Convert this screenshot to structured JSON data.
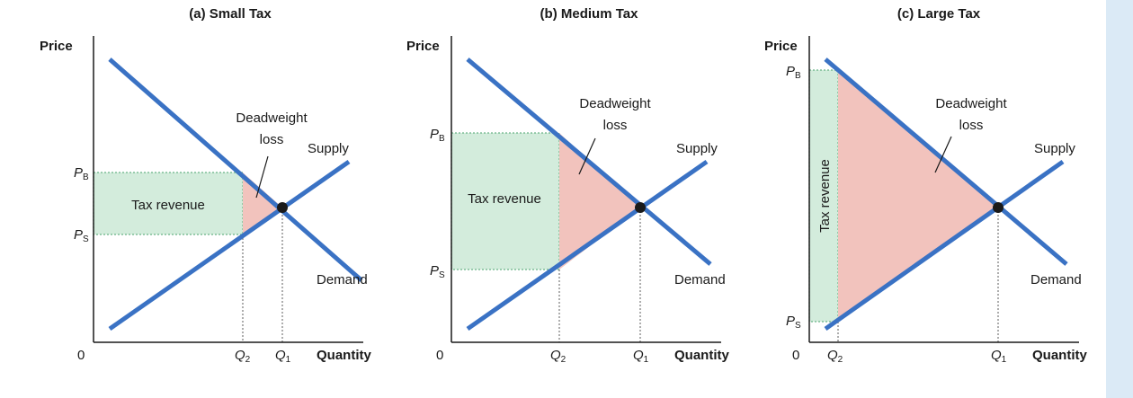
{
  "colors": {
    "curve": "#3a72c4",
    "tax_revenue_fill": "#d3ecdc",
    "tax_revenue_border": "#69b386",
    "deadweight_fill": "#f2c3bd",
    "guide": "#777777",
    "axis": "#1a1a1a",
    "side_strip": "#dbeaf6"
  },
  "panels": [
    {
      "title": "(a) Small Tax",
      "y_axis_label": "Price",
      "x_axis_label": "Quantity",
      "origin_label": "0",
      "pb_label": "P",
      "pb_sub": "B",
      "ps_label": "P",
      "ps_sub": "S",
      "q2_label": "Q",
      "q2_sub": "2",
      "q1_label": "Q",
      "q1_sub": "1",
      "supply_label": "Supply",
      "demand_label": "Demand",
      "dwl_label_line1": "Deadweight",
      "dwl_label_line2": "loss",
      "tax_revenue_label": "Tax revenue"
    },
    {
      "title": "(b) Medium Tax",
      "y_axis_label": "Price",
      "x_axis_label": "Quantity",
      "origin_label": "0",
      "pb_label": "P",
      "pb_sub": "B",
      "ps_label": "P",
      "ps_sub": "S",
      "q2_label": "Q",
      "q2_sub": "2",
      "q1_label": "Q",
      "q1_sub": "1",
      "supply_label": "Supply",
      "demand_label": "Demand",
      "dwl_label_line1": "Deadweight",
      "dwl_label_line2": "loss",
      "tax_revenue_label": "Tax revenue"
    },
    {
      "title": "(c) Large Tax",
      "y_axis_label": "Price",
      "x_axis_label": "Quantity",
      "origin_label": "0",
      "pb_label": "P",
      "pb_sub": "B",
      "ps_label": "P",
      "ps_sub": "S",
      "q2_label": "Q",
      "q2_sub": "2",
      "q1_label": "Q",
      "q1_sub": "1",
      "supply_label": "Supply",
      "demand_label": "Demand",
      "dwl_label_line1": "Deadweight",
      "dwl_label_line2": "loss",
      "tax_revenue_label": "Tax revenue"
    }
  ]
}
